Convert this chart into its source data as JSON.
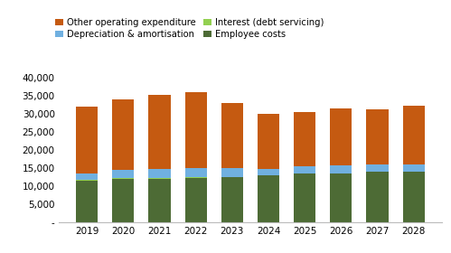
{
  "years": [
    2019,
    2020,
    2021,
    2022,
    2023,
    2024,
    2025,
    2026,
    2027,
    2028
  ],
  "employee_costs": [
    11700,
    12200,
    12200,
    12300,
    12500,
    13000,
    13500,
    13500,
    14000,
    14000
  ],
  "interest": [
    200,
    200,
    200,
    200,
    200,
    200,
    200,
    200,
    200,
    200
  ],
  "depreciation": [
    1800,
    2100,
    2400,
    2700,
    2500,
    1600,
    1800,
    2200,
    1800,
    1900
  ],
  "other_opex": [
    18300,
    19700,
    20500,
    21000,
    18000,
    15200,
    15000,
    15600,
    15300,
    16200
  ],
  "colors": {
    "employee_costs": "#4d6b35",
    "interest": "#92d050",
    "depreciation": "#70b0e0",
    "other_opex": "#c55a11"
  },
  "legend_labels": [
    "Other operating expenditure",
    "Depreciation & amortisation",
    "Interest (debt servicing)",
    "Employee costs"
  ],
  "ylim": [
    0,
    42000
  ],
  "yticks": [
    0,
    5000,
    10000,
    15000,
    20000,
    25000,
    30000,
    35000,
    40000
  ],
  "ytick_labels": [
    "-",
    "5,000",
    "10,000",
    "15,000",
    "20,000",
    "25,000",
    "30,000",
    "35,000",
    "40,000"
  ],
  "background_color": "#ffffff",
  "bar_width": 0.6
}
